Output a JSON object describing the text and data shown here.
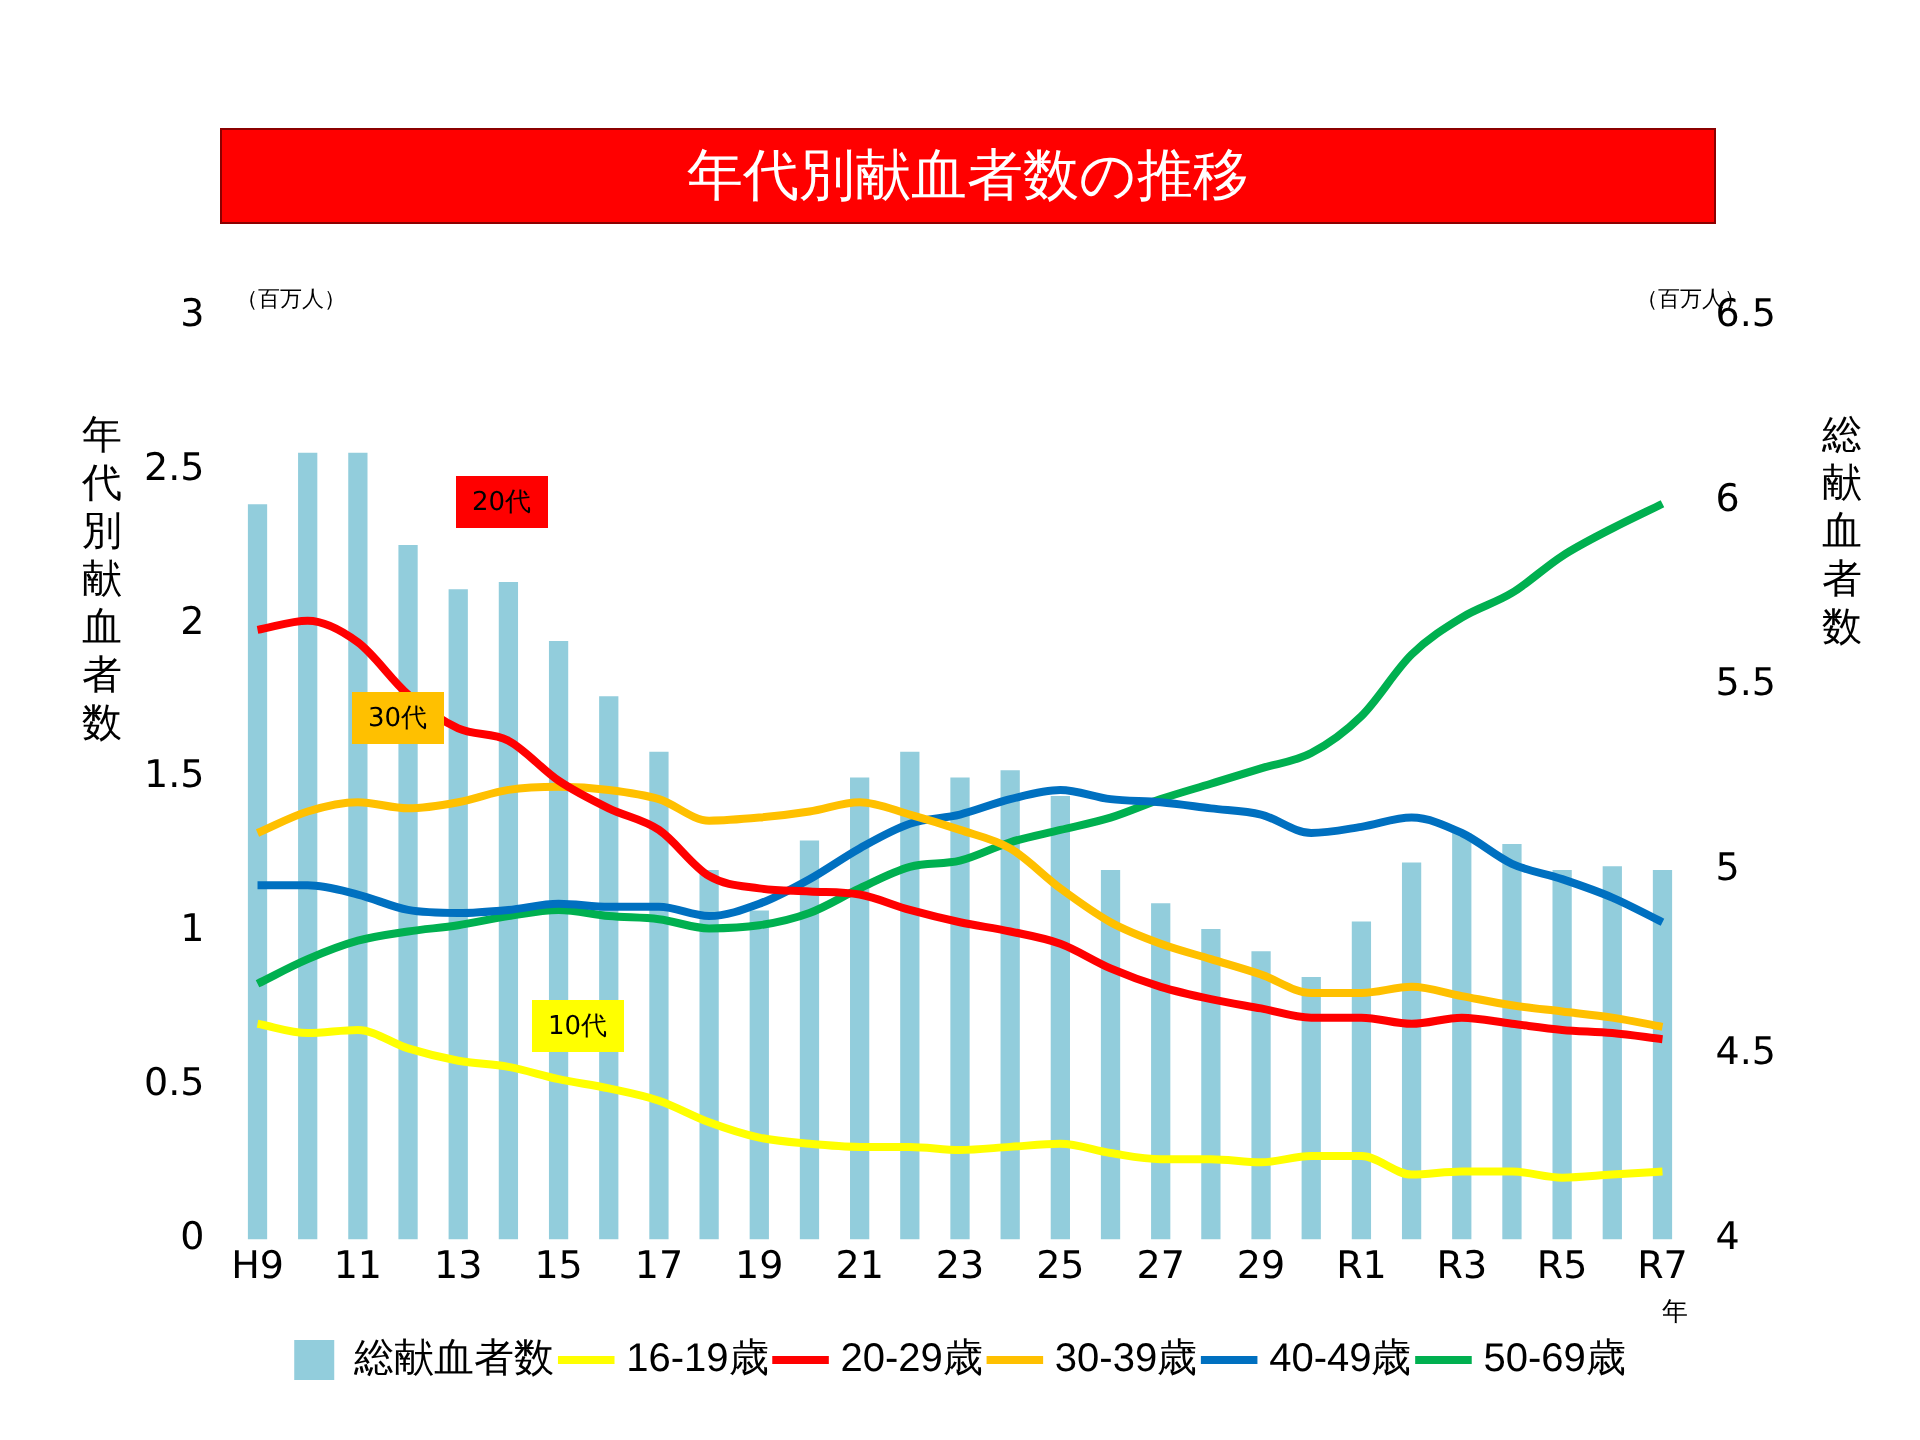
{
  "chart_data": {
    "type": "line",
    "title": "年代別献血者数の推移",
    "ylabel": "年代別献血者数",
    "y2label": "総献血者数",
    "xlabel": "年",
    "categories": [
      "H9",
      null,
      "11",
      null,
      "13",
      null,
      "15",
      null,
      "17",
      null,
      "19",
      null,
      "21",
      null,
      "23",
      null,
      "25",
      null,
      "27",
      null,
      "29",
      null,
      "R1",
      null,
      "R3",
      null,
      "R5",
      null,
      "R7"
    ],
    "series": [
      {
        "name": "総献血者数",
        "type": "bar",
        "axis": "y2",
        "color": "#92cddc",
        "values": [
          5.99,
          6.13,
          6.13,
          5.88,
          5.76,
          5.78,
          5.62,
          5.47,
          5.32,
          5.0,
          4.89,
          5.08,
          5.25,
          5.32,
          5.25,
          5.27,
          5.2,
          5.0,
          4.91,
          4.84,
          4.78,
          4.71,
          4.86,
          5.02,
          5.1,
          5.07,
          5.0,
          5.01,
          5.0
        ]
      },
      {
        "name": "16-19歳",
        "color": "#ffff00",
        "values": [
          0.7,
          0.67,
          0.68,
          0.62,
          0.58,
          0.56,
          0.52,
          0.49,
          0.45,
          0.38,
          0.33,
          0.31,
          0.3,
          0.3,
          0.29,
          0.3,
          0.31,
          0.28,
          0.26,
          0.26,
          0.25,
          0.27,
          0.27,
          0.21,
          0.22,
          0.22,
          0.2,
          0.21,
          0.22
        ]
      },
      {
        "name": "20-29歳",
        "color": "#ff0000",
        "values": [
          1.98,
          2.01,
          1.94,
          1.77,
          1.66,
          1.62,
          1.49,
          1.4,
          1.33,
          1.18,
          1.14,
          1.13,
          1.12,
          1.07,
          1.03,
          1.0,
          0.96,
          0.88,
          0.82,
          0.78,
          0.75,
          0.72,
          0.72,
          0.7,
          0.72,
          0.7,
          0.68,
          0.67,
          0.65
        ]
      },
      {
        "name": "30-39歳",
        "color": "#ffc000",
        "values": [
          1.32,
          1.39,
          1.42,
          1.4,
          1.42,
          1.46,
          1.47,
          1.46,
          1.43,
          1.36,
          1.37,
          1.39,
          1.42,
          1.38,
          1.33,
          1.27,
          1.14,
          1.03,
          0.96,
          0.91,
          0.86,
          0.8,
          0.8,
          0.82,
          0.79,
          0.76,
          0.74,
          0.72,
          0.69
        ]
      },
      {
        "name": "40-49歳",
        "color": "#0070c0",
        "values": [
          1.15,
          1.15,
          1.12,
          1.07,
          1.06,
          1.07,
          1.09,
          1.08,
          1.08,
          1.05,
          1.09,
          1.17,
          1.27,
          1.35,
          1.38,
          1.43,
          1.46,
          1.43,
          1.42,
          1.4,
          1.38,
          1.32,
          1.34,
          1.37,
          1.32,
          1.22,
          1.17,
          1.11,
          1.03
        ]
      },
      {
        "name": "50-69歳",
        "color": "#00b050",
        "values": [
          0.83,
          0.91,
          0.97,
          1.0,
          1.02,
          1.05,
          1.07,
          1.05,
          1.04,
          1.01,
          1.02,
          1.06,
          1.14,
          1.21,
          1.23,
          1.29,
          1.33,
          1.37,
          1.43,
          1.48,
          1.53,
          1.58,
          1.7,
          1.9,
          2.02,
          2.1,
          2.22,
          2.31,
          2.39
        ]
      }
    ],
    "ylim": [
      0,
      3
    ],
    "yticks": [
      0,
      0.5,
      1,
      1.5,
      2,
      2.5,
      3
    ],
    "y2lim": [
      4,
      6.5
    ],
    "y2ticks": [
      4,
      4.5,
      5,
      5.5,
      6,
      6.5
    ],
    "annotations": [
      "20代",
      "30代",
      "10代",
      "（百万人）",
      "（百万人）"
    ],
    "grid": false,
    "legend": "bottom"
  }
}
